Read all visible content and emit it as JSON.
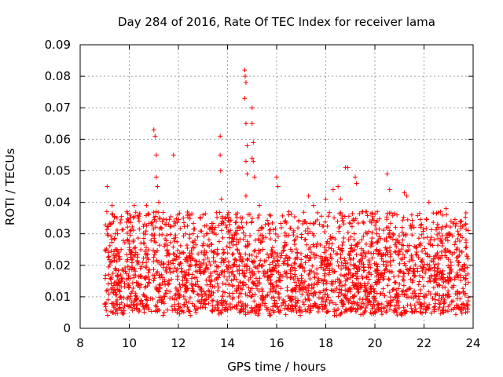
{
  "chart_data": {
    "type": "scatter",
    "title": "Day 284 of 2016, Rate Of TEC Index for receiver lama",
    "xlabel": "GPS time / hours",
    "ylabel": "ROTI / TECUs",
    "xlim": [
      8,
      24
    ],
    "ylim": [
      0,
      0.09
    ],
    "xticks": [
      "8",
      "10",
      "12",
      "14",
      "16",
      "18",
      "20",
      "22",
      "24"
    ],
    "yticks": [
      "0",
      "0.01",
      "0.02",
      "0.03",
      "0.04",
      "0.05",
      "0.06",
      "0.07",
      "0.08",
      "0.09"
    ],
    "grid": true,
    "marker": "+",
    "series": [
      {
        "name": "ROTI",
        "color": "#ff0000",
        "data_extent": {
          "x_start": 9.0,
          "x_end": 23.8,
          "typical_range": [
            0.005,
            0.025
          ]
        },
        "points": [
          [
            9.1,
            0.045
          ],
          [
            9.3,
            0.039
          ],
          [
            9.5,
            0.035
          ],
          [
            9.9,
            0.037
          ],
          [
            10.2,
            0.039
          ],
          [
            10.4,
            0.034
          ],
          [
            10.7,
            0.039
          ],
          [
            11.0,
            0.063
          ],
          [
            11.05,
            0.061
          ],
          [
            11.1,
            0.055
          ],
          [
            11.1,
            0.048
          ],
          [
            11.15,
            0.045
          ],
          [
            11.2,
            0.04
          ],
          [
            11.5,
            0.033
          ],
          [
            11.8,
            0.055
          ],
          [
            12.2,
            0.035
          ],
          [
            12.6,
            0.03
          ],
          [
            13.0,
            0.036
          ],
          [
            13.2,
            0.03
          ],
          [
            13.5,
            0.032
          ],
          [
            13.7,
            0.061
          ],
          [
            13.7,
            0.055
          ],
          [
            13.72,
            0.05
          ],
          [
            13.75,
            0.041
          ],
          [
            14.0,
            0.036
          ],
          [
            14.4,
            0.031
          ],
          [
            14.6,
            0.035
          ],
          [
            14.7,
            0.082
          ],
          [
            14.72,
            0.08
          ],
          [
            14.75,
            0.078
          ],
          [
            14.7,
            0.073
          ],
          [
            14.75,
            0.065
          ],
          [
            14.8,
            0.058
          ],
          [
            14.75,
            0.053
          ],
          [
            14.8,
            0.049
          ],
          [
            14.75,
            0.042
          ],
          [
            15.0,
            0.07
          ],
          [
            15.0,
            0.065
          ],
          [
            15.05,
            0.059
          ],
          [
            15.0,
            0.054
          ],
          [
            15.05,
            0.053
          ],
          [
            15.1,
            0.048
          ],
          [
            15.3,
            0.039
          ],
          [
            15.7,
            0.036
          ],
          [
            16.0,
            0.048
          ],
          [
            16.05,
            0.045
          ],
          [
            16.5,
            0.037
          ],
          [
            16.9,
            0.034
          ],
          [
            17.3,
            0.042
          ],
          [
            17.5,
            0.039
          ],
          [
            18.0,
            0.041
          ],
          [
            18.3,
            0.044
          ],
          [
            18.5,
            0.045
          ],
          [
            18.6,
            0.041
          ],
          [
            18.8,
            0.051
          ],
          [
            18.9,
            0.051
          ],
          [
            19.2,
            0.048
          ],
          [
            19.25,
            0.046
          ],
          [
            19.5,
            0.037
          ],
          [
            19.8,
            0.034
          ],
          [
            20.1,
            0.037
          ],
          [
            20.5,
            0.049
          ],
          [
            20.6,
            0.044
          ],
          [
            20.9,
            0.036
          ],
          [
            21.2,
            0.043
          ],
          [
            21.3,
            0.042
          ],
          [
            21.5,
            0.036
          ],
          [
            21.9,
            0.033
          ],
          [
            22.2,
            0.04
          ],
          [
            22.6,
            0.032
          ],
          [
            22.9,
            0.038
          ],
          [
            23.1,
            0.034
          ],
          [
            23.5,
            0.034
          ],
          [
            23.7,
            0.033
          ]
        ]
      }
    ]
  }
}
